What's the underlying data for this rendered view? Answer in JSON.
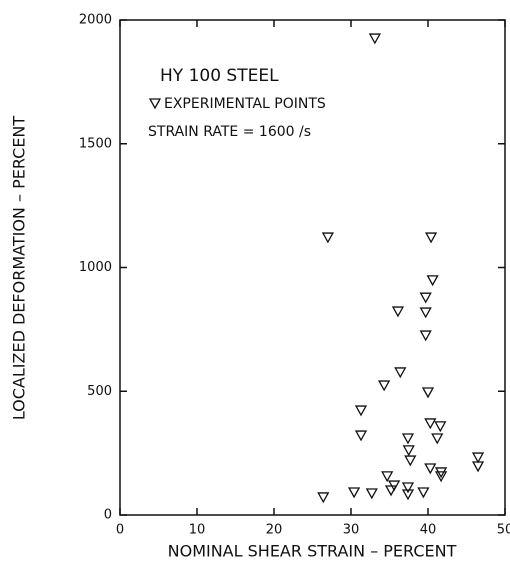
{
  "chart_data": {
    "type": "scatter",
    "title": "HY 100 STEEL",
    "annotations": [
      "STRAIN RATE = 1600 /s"
    ],
    "x_label": "NOMINAL SHEAR STRAIN – PERCENT",
    "y_label": "LOCALIZED DEFORMATION – PERCENT",
    "xlim": [
      0,
      50
    ],
    "xticks": [
      0,
      10,
      20,
      30,
      40,
      50
    ],
    "ylim": [
      0,
      2000
    ],
    "yticks": [
      0,
      500,
      1000,
      1500,
      2000
    ],
    "series": [
      {
        "name": "EXPERIMENTAL POINTS",
        "color": "#111111",
        "marker": "triangle-down",
        "x": [
          33.1,
          27.0,
          40.4,
          40.6,
          39.7,
          36.1,
          39.7,
          39.7,
          36.4,
          34.3,
          40.0,
          31.3,
          40.3,
          41.6,
          31.3,
          41.2,
          37.4,
          37.5,
          37.7,
          40.3,
          41.7,
          41.7,
          46.5,
          46.5,
          34.7,
          35.6,
          37.4,
          35.2,
          37.4,
          30.4,
          32.7,
          39.4,
          26.4
        ],
        "values": [
          1927,
          1123,
          1123,
          950,
          880,
          824,
          820,
          727,
          578,
          525,
          497,
          424,
          372,
          360,
          323,
          311,
          311,
          263,
          222,
          190,
          174,
          158,
          234,
          198,
          158,
          121,
          113,
          101,
          85,
          93,
          89,
          93,
          73
        ]
      }
    ]
  }
}
